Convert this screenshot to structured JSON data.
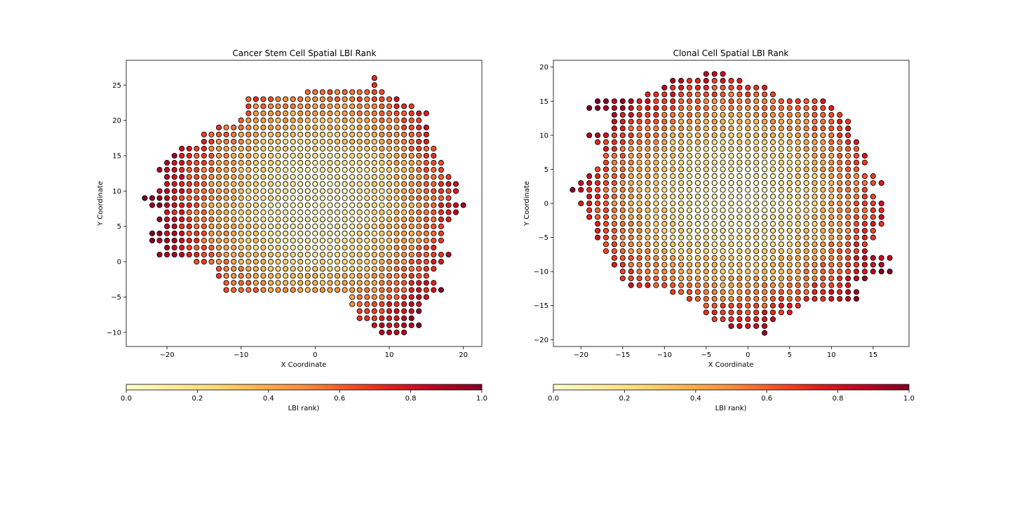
{
  "chart_data": [
    {
      "type": "scatter",
      "title": "Cancer Stem Cell Spatial LBI Rank",
      "xlabel": "X Coordinate",
      "ylabel": "Y Coordinate",
      "xlim": [
        -25.5,
        22.5
      ],
      "ylim": [
        -12,
        28.5
      ],
      "xticks": [
        -20,
        -10,
        0,
        10,
        20
      ],
      "yticks": [
        -10,
        -5,
        0,
        5,
        10,
        15,
        20,
        25
      ],
      "xtick_labels": [
        "−20",
        "−10",
        "0",
        "10",
        "20"
      ],
      "ytick_labels": [
        "−10",
        "−5",
        "0",
        "5",
        "10",
        "15",
        "20",
        "25"
      ],
      "grid": false,
      "colormap": "YlOrRd",
      "color_value": "LBI rank",
      "colorbar": {
        "label": "LBI rank)",
        "orientation": "horizontal",
        "range": [
          0,
          1
        ],
        "ticks": [
          0.0,
          0.2,
          0.4,
          0.6,
          0.8,
          1.0
        ],
        "tick_labels": [
          "0.0",
          "0.2",
          "0.4",
          "0.6",
          "0.8",
          "1.0"
        ]
      },
      "rows": [
        {
          "y": 26,
          "x_start": 8,
          "x_end": 8
        },
        {
          "y": 25,
          "x_start": 8,
          "x_end": 8
        },
        {
          "y": 24,
          "x_start": -1,
          "x_end": 9
        },
        {
          "y": 23,
          "x_start": -9,
          "x_end": 11
        },
        {
          "y": 22,
          "x_start": -9,
          "x_end": 13
        },
        {
          "y": 21,
          "x_start": -9,
          "x_end": 15
        },
        {
          "y": 20,
          "x_start": -10,
          "x_end": 14
        },
        {
          "y": 19,
          "x_start": -13,
          "x_end": 15
        },
        {
          "y": 18,
          "x_start": -15,
          "x_end": 15
        },
        {
          "y": 17,
          "x_start": -15,
          "x_end": 15
        },
        {
          "y": 16,
          "x_start": -18,
          "x_end": 16
        },
        {
          "y": 15,
          "x_start": -19,
          "x_end": 16
        },
        {
          "y": 14,
          "x_start": -20,
          "x_end": 17
        },
        {
          "y": 13,
          "x_start": -21,
          "x_end": 17
        },
        {
          "y": 12,
          "x_start": -20,
          "x_end": 18
        },
        {
          "y": 11,
          "x_start": -20,
          "x_end": 19
        },
        {
          "y": 10,
          "x_start": -21,
          "x_end": 19
        },
        {
          "y": 9,
          "x_start": -23,
          "x_end": 18
        },
        {
          "y": 8,
          "x_start": -22,
          "x_end": 20
        },
        {
          "y": 7,
          "x_start": -20,
          "x_end": 19
        },
        {
          "y": 6,
          "x_start": -21,
          "x_end": 18
        },
        {
          "y": 5,
          "x_start": -20,
          "x_end": 17
        },
        {
          "y": 4,
          "x_start": -22,
          "x_end": 17
        },
        {
          "y": 3,
          "x_start": -22,
          "x_end": 17
        },
        {
          "y": 2,
          "x_start": -20,
          "x_end": 16
        },
        {
          "y": 1,
          "x_start": -21,
          "x_end": 18
        },
        {
          "y": 0,
          "x_start": -16,
          "x_end": 17
        },
        {
          "y": -1,
          "x_start": -13,
          "x_end": 16
        },
        {
          "y": -2,
          "x_start": -13,
          "x_end": 15
        },
        {
          "y": -3,
          "x_start": -12,
          "x_end": 16
        },
        {
          "y": -4,
          "x_start": -12,
          "x_end": 17
        },
        {
          "y": -5,
          "x_start": 5,
          "x_end": 15
        },
        {
          "y": -6,
          "x_start": 5,
          "x_end": 14
        },
        {
          "y": -7,
          "x_start": 6,
          "x_end": 14
        },
        {
          "y": -8,
          "x_start": 6,
          "x_end": 13
        },
        {
          "y": -9,
          "x_start": 8,
          "x_end": 14
        },
        {
          "y": -10,
          "x_start": 9,
          "x_end": 12
        }
      ]
    },
    {
      "type": "scatter",
      "title": "Clonal Cell Spatial LBI Rank",
      "xlabel": "X Coordinate",
      "ylabel": "Y Coordinate",
      "xlim": [
        -23.3,
        19.3
      ],
      "ylim": [
        -21,
        21
      ],
      "xticks": [
        -20,
        -15,
        -10,
        -5,
        0,
        5,
        10,
        15
      ],
      "yticks": [
        -20,
        -15,
        -10,
        -5,
        0,
        5,
        10,
        15,
        20
      ],
      "xtick_labels": [
        "−20",
        "−15",
        "−10",
        "−5",
        "0",
        "5",
        "10",
        "15"
      ],
      "ytick_labels": [
        "−20",
        "−15",
        "−10",
        "−5",
        "0",
        "5",
        "10",
        "15",
        "20"
      ],
      "grid": false,
      "colormap": "YlOrRd",
      "color_value": "LBI rank",
      "colorbar": {
        "label": "LBI rank)",
        "orientation": "horizontal",
        "range": [
          0,
          1
        ],
        "ticks": [
          0.0,
          0.2,
          0.4,
          0.6,
          0.8,
          1.0
        ],
        "tick_labels": [
          "0.0",
          "0.2",
          "0.4",
          "0.6",
          "0.8",
          "1.0"
        ]
      },
      "rows": [
        {
          "y": 19,
          "x_start": -5,
          "x_end": -3
        },
        {
          "y": 18,
          "x_start": -9,
          "x_end": -1
        },
        {
          "y": 17,
          "x_start": -10,
          "x_end": 2
        },
        {
          "y": 16,
          "x_start": -12,
          "x_end": 3
        },
        {
          "y": 15,
          "x_start": -18,
          "x_end": 9
        },
        {
          "y": 14,
          "x_start": -19,
          "x_end": 10
        },
        {
          "y": 13,
          "x_start": -16,
          "x_end": 11
        },
        {
          "y": 12,
          "x_start": -16,
          "x_end": 12
        },
        {
          "y": 11,
          "x_start": -16,
          "x_end": 12
        },
        {
          "y": 10,
          "x_start": -19,
          "x_end": 12
        },
        {
          "y": 9,
          "x_start": -18,
          "x_end": 13
        },
        {
          "y": 8,
          "x_start": -17,
          "x_end": 13
        },
        {
          "y": 7,
          "x_start": -17,
          "x_end": 14
        },
        {
          "y": 6,
          "x_start": -17,
          "x_end": 14
        },
        {
          "y": 5,
          "x_start": -18,
          "x_end": 13
        },
        {
          "y": 4,
          "x_start": -19,
          "x_end": 15
        },
        {
          "y": 3,
          "x_start": -20,
          "x_end": 16
        },
        {
          "y": 2,
          "x_start": -21,
          "x_end": 14
        },
        {
          "y": 1,
          "x_start": -19,
          "x_end": 15
        },
        {
          "y": 0,
          "x_start": -20,
          "x_end": 16
        },
        {
          "y": -1,
          "x_start": -19,
          "x_end": 16
        },
        {
          "y": -2,
          "x_start": -19,
          "x_end": 16
        },
        {
          "y": -3,
          "x_start": -18,
          "x_end": 16
        },
        {
          "y": -4,
          "x_start": -18,
          "x_end": 15
        },
        {
          "y": -5,
          "x_start": -18,
          "x_end": 15
        },
        {
          "y": -6,
          "x_start": -17,
          "x_end": 14
        },
        {
          "y": -7,
          "x_start": -17,
          "x_end": 14
        },
        {
          "y": -8,
          "x_start": -16,
          "x_end": 17
        },
        {
          "y": -9,
          "x_start": -16,
          "x_end": 16
        },
        {
          "y": -10,
          "x_start": -15,
          "x_end": 17
        },
        {
          "y": -11,
          "x_start": -15,
          "x_end": 14
        },
        {
          "y": -12,
          "x_start": -14,
          "x_end": 12
        },
        {
          "y": -13,
          "x_start": -9,
          "x_end": 13
        },
        {
          "y": -14,
          "x_start": -7,
          "x_end": 13
        },
        {
          "y": -15,
          "x_start": -5,
          "x_end": 6
        },
        {
          "y": -16,
          "x_start": -5,
          "x_end": 5
        },
        {
          "y": -17,
          "x_start": -4,
          "x_end": 3
        },
        {
          "y": -18,
          "x_start": -2,
          "x_end": 2
        },
        {
          "y": -19,
          "x_start": 2,
          "x_end": 2
        }
      ]
    }
  ]
}
